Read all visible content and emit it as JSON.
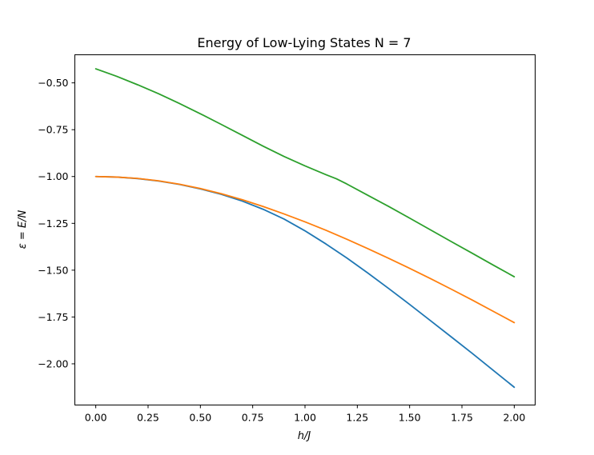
{
  "chart_data": {
    "type": "line",
    "title": "Energy of Low-Lying States N = 7",
    "xlabel": "h/J",
    "ylabel": "ε = E/N",
    "xlim": [
      -0.1,
      2.1
    ],
    "ylim": [
      -2.22,
      -0.35
    ],
    "xticks": [
      0.0,
      0.25,
      0.5,
      0.75,
      1.0,
      1.25,
      1.5,
      1.75,
      2.0
    ],
    "xtick_labels": [
      "0.00",
      "0.25",
      "0.50",
      "0.75",
      "1.00",
      "1.25",
      "1.50",
      "1.75",
      "2.00"
    ],
    "yticks": [
      -2.0,
      -1.75,
      -1.5,
      -1.25,
      -1.0,
      -0.75,
      -0.5
    ],
    "ytick_labels": [
      "−2.00",
      "−1.75",
      "−1.50",
      "−1.25",
      "−1.00",
      "−0.75",
      "−0.50"
    ],
    "grid": false,
    "series": [
      {
        "color": "#1f77b4",
        "x": [
          0.0,
          0.1,
          0.2,
          0.3,
          0.4,
          0.5,
          0.6,
          0.7,
          0.8,
          0.9,
          1.0,
          1.1,
          1.2,
          1.3,
          1.4,
          1.5,
          1.6,
          1.7,
          1.8,
          1.9,
          2.0
        ],
        "y": [
          -1.0,
          -1.003,
          -1.011,
          -1.024,
          -1.042,
          -1.066,
          -1.095,
          -1.131,
          -1.175,
          -1.227,
          -1.29,
          -1.36,
          -1.435,
          -1.515,
          -1.598,
          -1.683,
          -1.77,
          -1.857,
          -1.945,
          -2.035,
          -2.125
        ]
      },
      {
        "color": "#ff7f0e",
        "x": [
          0.0,
          0.1,
          0.2,
          0.3,
          0.4,
          0.5,
          0.6,
          0.7,
          0.8,
          0.9,
          1.0,
          1.1,
          1.2,
          1.3,
          1.4,
          1.5,
          1.6,
          1.7,
          1.8,
          1.9,
          2.0
        ],
        "y": [
          -1.0,
          -1.003,
          -1.01,
          -1.023,
          -1.041,
          -1.064,
          -1.092,
          -1.124,
          -1.16,
          -1.2,
          -1.242,
          -1.287,
          -1.335,
          -1.385,
          -1.437,
          -1.49,
          -1.545,
          -1.602,
          -1.66,
          -1.72,
          -1.78
        ]
      },
      {
        "color": "#2ca02c",
        "x": [
          0.0,
          0.1,
          0.2,
          0.3,
          0.4,
          0.5,
          0.6,
          0.7,
          0.8,
          0.9,
          1.0,
          1.1,
          1.15,
          1.2,
          1.3,
          1.4,
          1.5,
          1.6,
          1.7,
          1.8,
          1.9,
          2.0
        ],
        "y": [
          -0.425,
          -0.465,
          -0.51,
          -0.558,
          -0.61,
          -0.665,
          -0.722,
          -0.78,
          -0.838,
          -0.893,
          -0.943,
          -0.99,
          -1.012,
          -1.04,
          -1.1,
          -1.16,
          -1.222,
          -1.285,
          -1.348,
          -1.41,
          -1.473,
          -1.535
        ]
      }
    ]
  }
}
